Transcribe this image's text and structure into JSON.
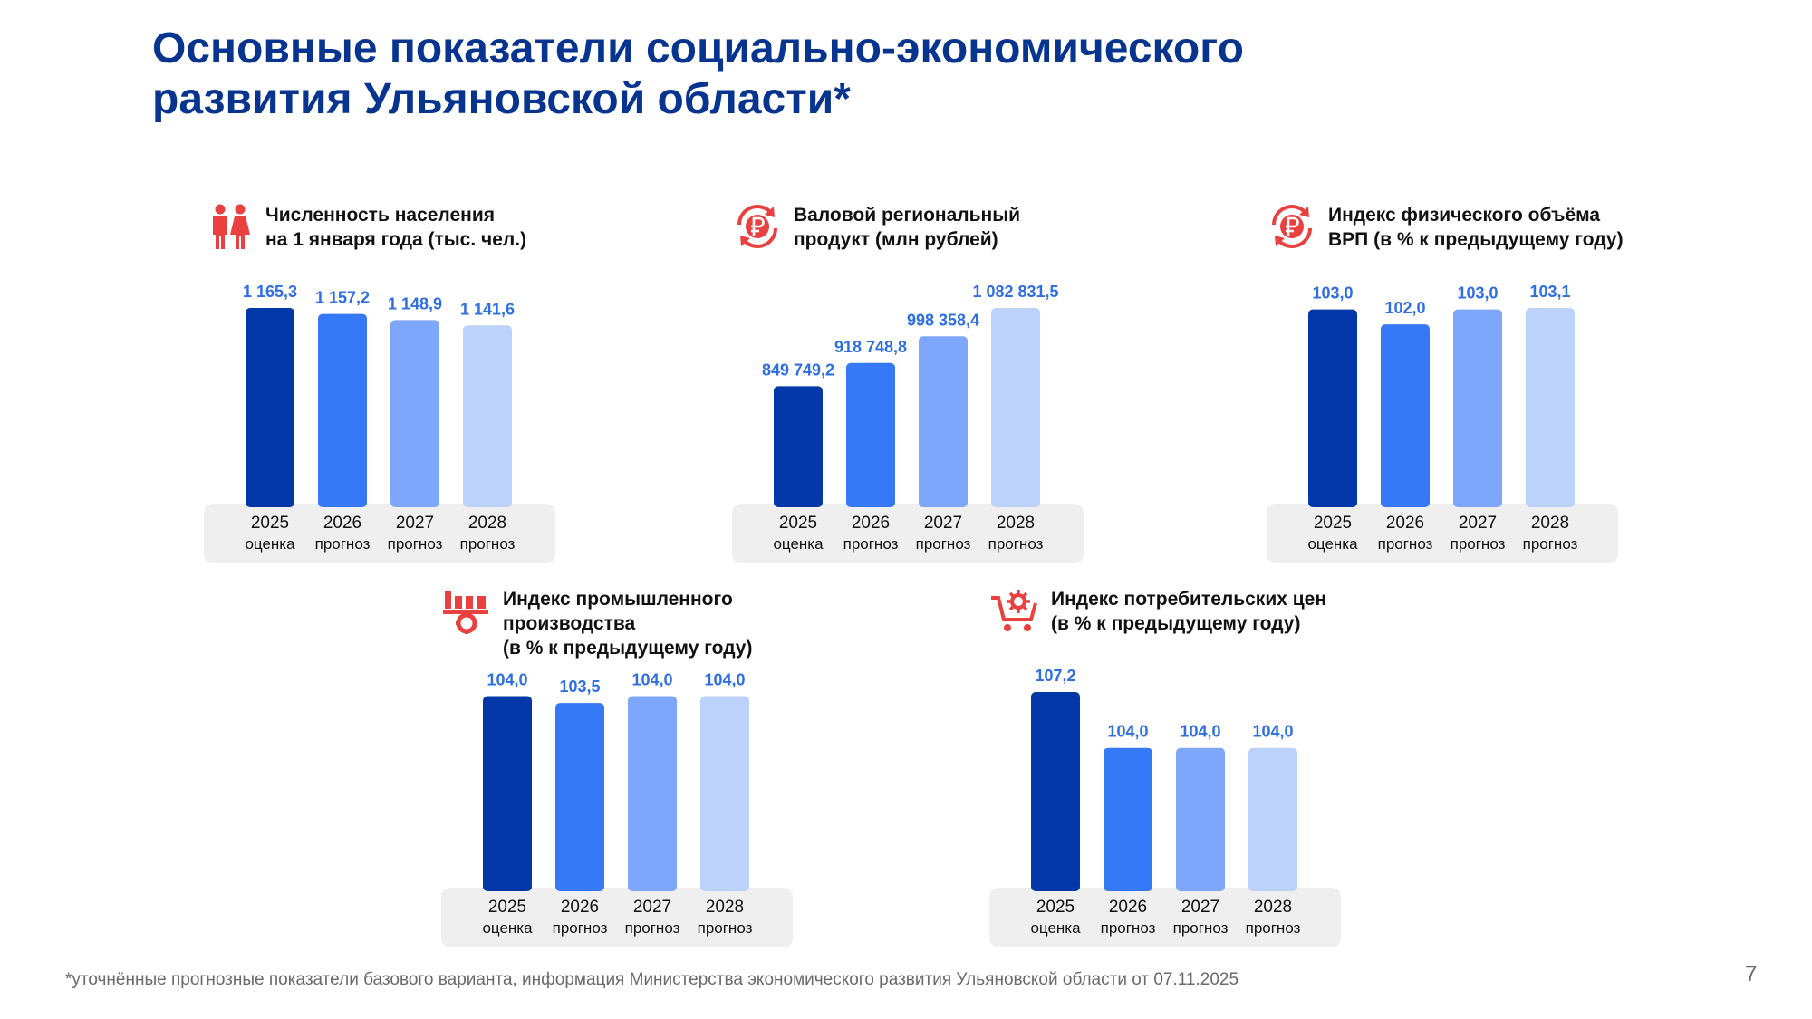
{
  "page": {
    "title_line1": "Основные показатели социально-экономического",
    "title_line2": "развития Ульяновской области*",
    "footnote": "*уточнённые прогнозные показатели базового варианта, информация Министерства экономического развития Ульяновской области от 07.11.2025",
    "page_number": "7"
  },
  "colors": {
    "title": "#06348f",
    "icon": "#e8413f",
    "value_label": "#2f6fe0",
    "bars": [
      "#0438a8",
      "#3579f6",
      "#7ea7fb",
      "#bcd2fb"
    ],
    "axis_background": "#efefef"
  },
  "panels": [
    {
      "icon": "people-icon",
      "title_line1": "Численность населения",
      "title_line2": "на 1 января года (тыс. чел.)",
      "title_line3": ""
    },
    {
      "icon": "ruble-cycle-icon",
      "title_line1": "Валовой региональный",
      "title_line2": "продукт (млн рублей)",
      "title_line3": ""
    },
    {
      "icon": "ruble-cycle-icon",
      "title_line1": "Индекс физического объёма",
      "title_line2": "ВРП (в % к предыдущему году)",
      "title_line3": ""
    },
    {
      "icon": "factory-gear-icon",
      "title_line1": "Индекс промышленного",
      "title_line2": "производства",
      "title_line3": "(в % к предыдущему году)"
    },
    {
      "icon": "cart-gear-icon",
      "title_line1": "Индекс потребительских цен",
      "title_line2": "(в % к предыдущему году)",
      "title_line3": ""
    }
  ],
  "chart_data": [
    {
      "type": "bar",
      "title": "Численность населения на 1 января года (тыс. чел.)",
      "categories": [
        {
          "year": "2025",
          "label": "оценка"
        },
        {
          "year": "2026",
          "label": "прогноз"
        },
        {
          "year": "2027",
          "label": "прогноз"
        },
        {
          "year": "2028",
          "label": "прогноз"
        }
      ],
      "values": [
        1165.3,
        1157.2,
        1148.9,
        1141.6
      ],
      "value_labels": [
        "1 165,3",
        "1 157,2",
        "1 148,9",
        "1 141,6"
      ],
      "ylim": [
        900,
        1165.3
      ],
      "xlabel": "",
      "ylabel": "",
      "grid": false
    },
    {
      "type": "bar",
      "title": "Валовой региональный продукт (млн рублей)",
      "categories": [
        {
          "year": "2025",
          "label": "оценка"
        },
        {
          "year": "2026",
          "label": "прогноз"
        },
        {
          "year": "2027",
          "label": "прогноз"
        },
        {
          "year": "2028",
          "label": "прогноз"
        }
      ],
      "values": [
        849749.2,
        918748.8,
        998358.4,
        1082831.5
      ],
      "value_labels": [
        "849 749,2",
        "918 748,8",
        "998 358,4",
        "1 082 831,5"
      ],
      "ylim": [
        500000,
        1082831.5
      ],
      "xlabel": "",
      "ylabel": "",
      "grid": false
    },
    {
      "type": "bar",
      "title": "Индекс физического объёма ВРП (в % к предыдущему году)",
      "categories": [
        {
          "year": "2025",
          "label": "оценка"
        },
        {
          "year": "2026",
          "label": "прогноз"
        },
        {
          "year": "2027",
          "label": "прогноз"
        },
        {
          "year": "2028",
          "label": "прогноз"
        }
      ],
      "values": [
        103.0,
        102.0,
        103.0,
        103.1
      ],
      "value_labels": [
        "103,0",
        "102,0",
        "103,0",
        "103,1"
      ],
      "ylim": [
        90,
        103.1
      ],
      "xlabel": "",
      "ylabel": "",
      "grid": false
    },
    {
      "type": "bar",
      "title": "Индекс промышленного производства (в % к предыдущему году)",
      "categories": [
        {
          "year": "2025",
          "label": "оценка"
        },
        {
          "year": "2026",
          "label": "прогноз"
        },
        {
          "year": "2027",
          "label": "прогноз"
        },
        {
          "year": "2028",
          "label": "прогноз"
        }
      ],
      "values": [
        104.0,
        103.5,
        104.0,
        104.0
      ],
      "value_labels": [
        "104,0",
        "103,5",
        "104,0",
        "104,0"
      ],
      "ylim": [
        90,
        104.3
      ],
      "xlabel": "",
      "ylabel": "",
      "grid": false
    },
    {
      "type": "bar",
      "title": "Индекс потребительских цен (в % к предыдущему году)",
      "categories": [
        {
          "year": "2025",
          "label": "оценка"
        },
        {
          "year": "2026",
          "label": "прогноз"
        },
        {
          "year": "2027",
          "label": "прогноз"
        },
        {
          "year": "2028",
          "label": "прогноз"
        }
      ],
      "values": [
        107.2,
        104.0,
        104.0,
        104.0
      ],
      "value_labels": [
        "107,2",
        "104,0",
        "104,0",
        "104,0"
      ],
      "ylim": [
        96,
        107.2
      ],
      "xlabel": "",
      "ylabel": "",
      "grid": false
    }
  ]
}
